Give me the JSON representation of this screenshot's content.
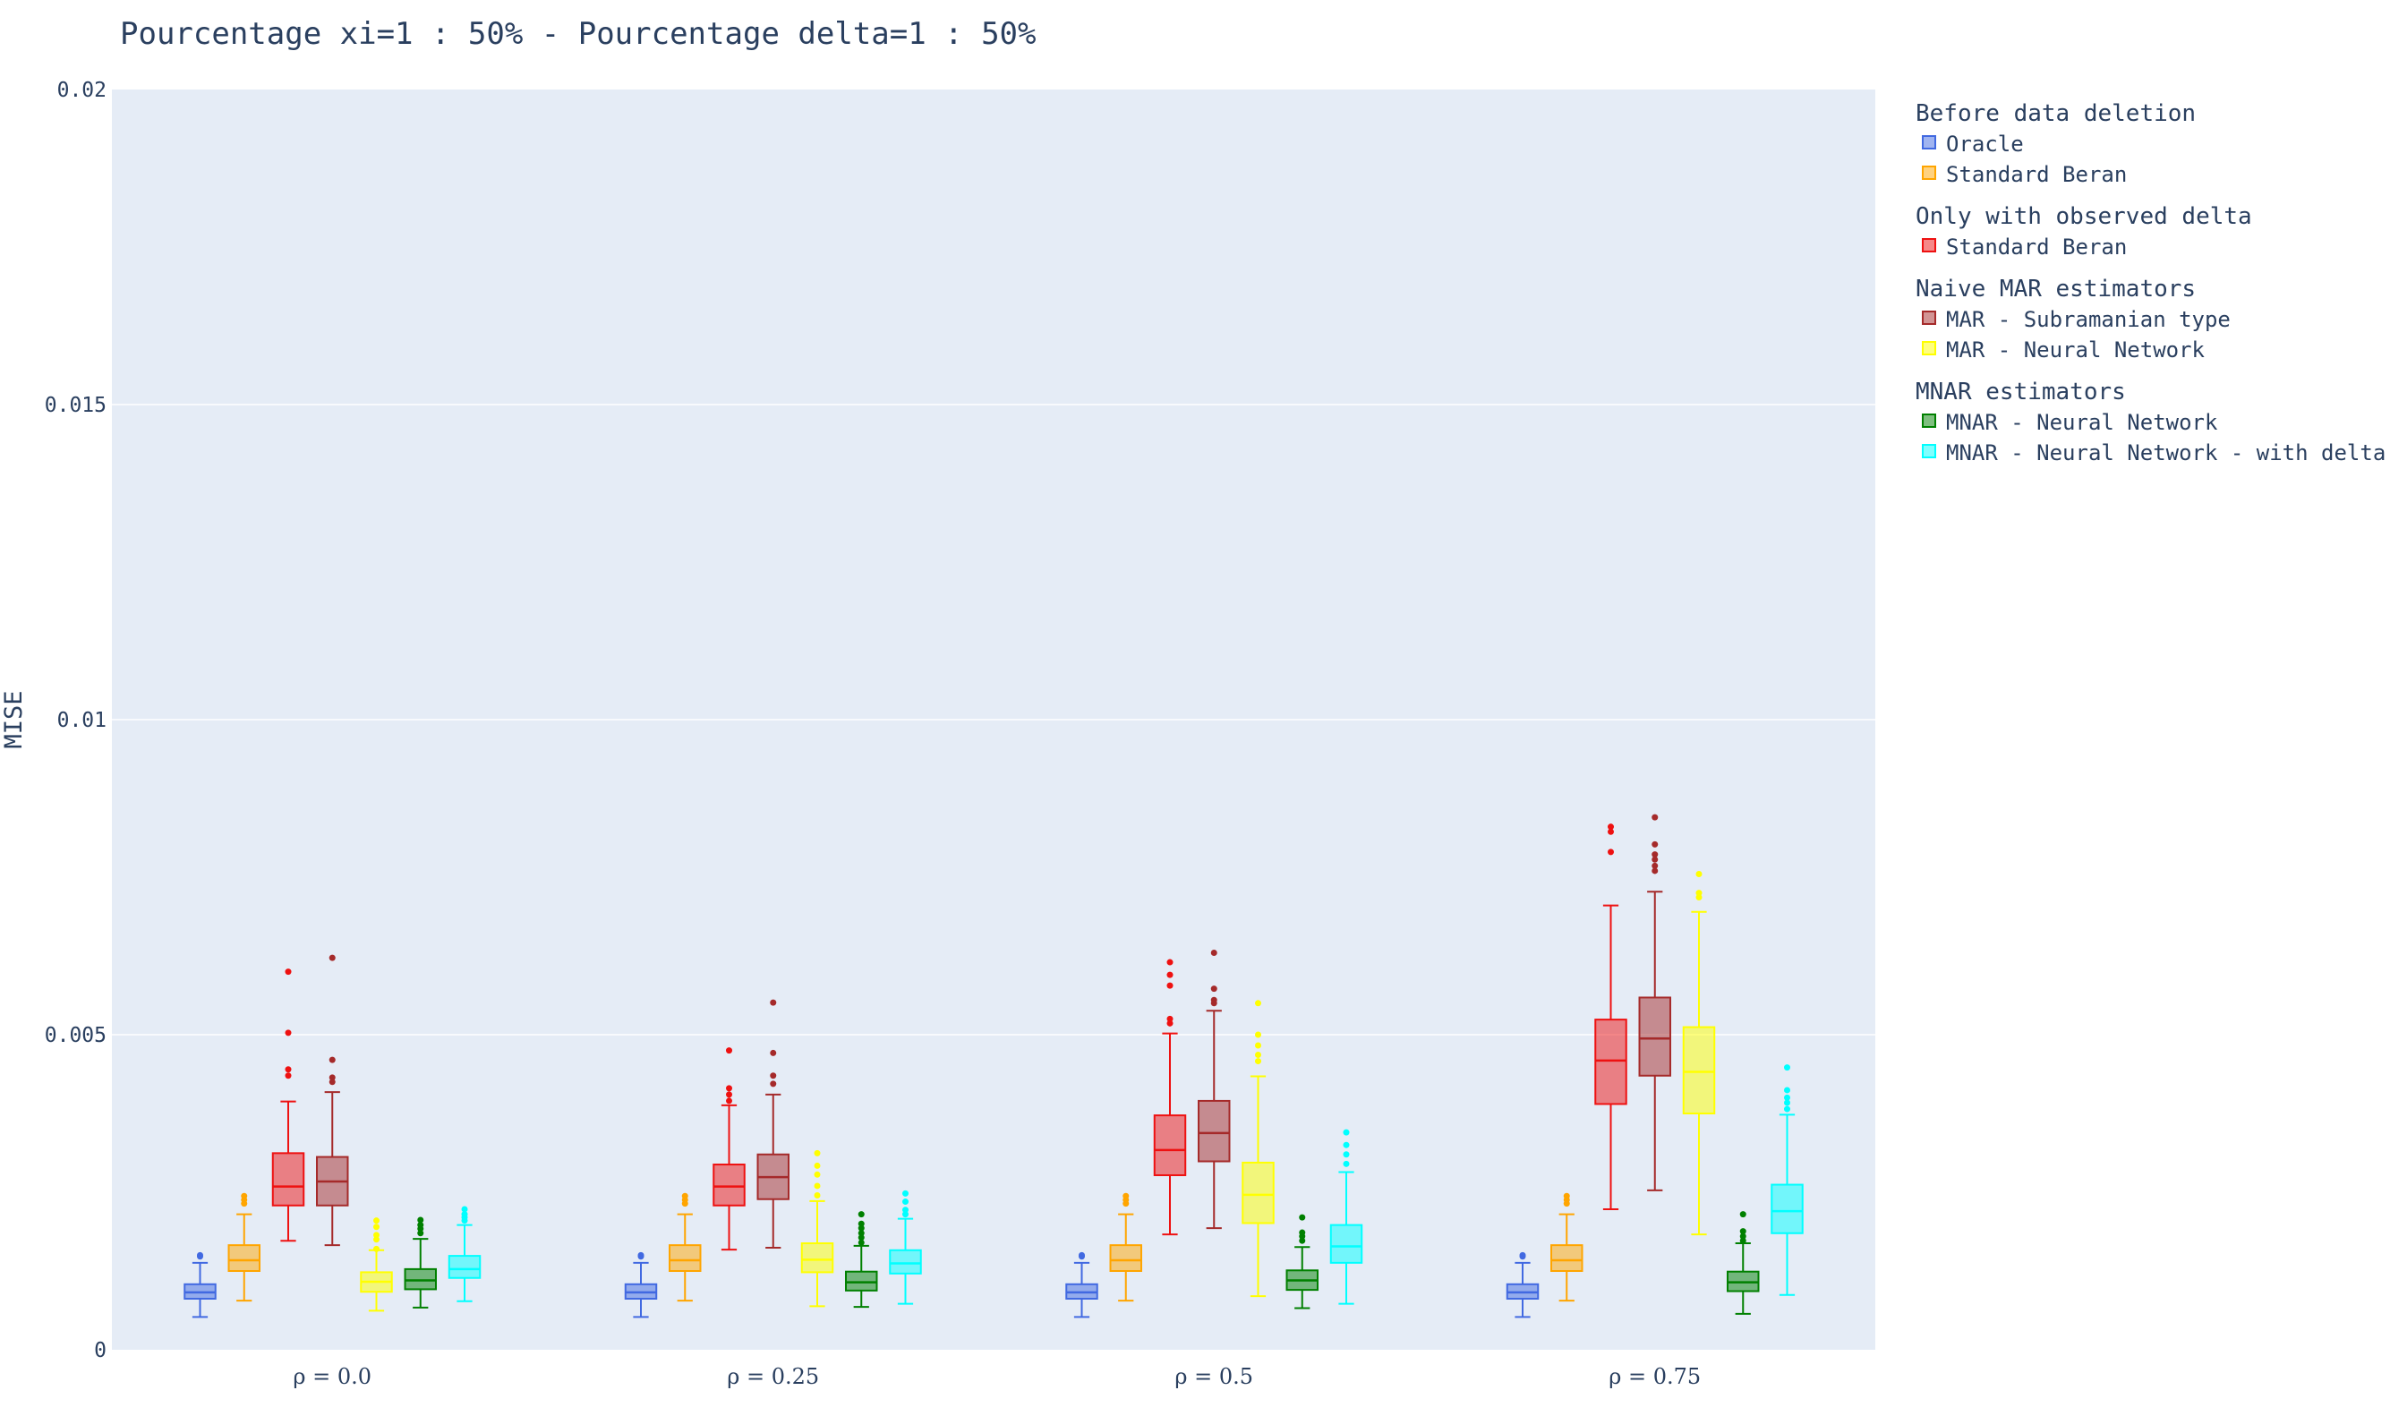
{
  "chart_data": {
    "type": "box",
    "title": "Pourcentage xi=1 : 50% - Pourcentage delta=1 : 50%",
    "ylabel": "MISE",
    "xlabel": "",
    "ylim": [
      0,
      0.02
    ],
    "yticks": [
      0,
      0.005,
      0.01,
      0.015,
      0.02
    ],
    "ytick_labels": [
      "0",
      "0.005",
      "0.01",
      "0.015",
      "0.02"
    ],
    "grid": true,
    "legend_position": "right",
    "categories": [
      "ρ = 0.0",
      "ρ = 0.25",
      "ρ = 0.5",
      "ρ = 0.75"
    ],
    "legend_groups": [
      {
        "title": "Before data deletion",
        "items": [
          "Oracle",
          "Standard Beran"
        ]
      },
      {
        "title": "Only with observed delta",
        "items": [
          "Standard Beran"
        ]
      },
      {
        "title": "Naive MAR estimators",
        "items": [
          "MAR - Subramanian type",
          "MAR - Neural Network"
        ]
      },
      {
        "title": "MNAR estimators",
        "items": [
          "MNAR - Neural Network",
          "MNAR - Neural Network - with delta"
        ]
      }
    ],
    "series": [
      {
        "name": "Oracle",
        "color": "#4169e1",
        "boxes": [
          {
            "min": 0.00052,
            "q1": 0.00081,
            "median": 0.00091,
            "q3": 0.00104,
            "max": 0.00138,
            "outliers": [
              0.00148,
              0.0015
            ]
          },
          {
            "min": 0.00052,
            "q1": 0.00081,
            "median": 0.00091,
            "q3": 0.00104,
            "max": 0.00138,
            "outliers": [
              0.00148,
              0.0015
            ]
          },
          {
            "min": 0.00052,
            "q1": 0.00081,
            "median": 0.00091,
            "q3": 0.00104,
            "max": 0.00138,
            "outliers": [
              0.00148,
              0.0015
            ]
          },
          {
            "min": 0.00052,
            "q1": 0.00081,
            "median": 0.00091,
            "q3": 0.00104,
            "max": 0.00138,
            "outliers": [
              0.00148,
              0.0015
            ]
          }
        ]
      },
      {
        "name": "Standard Beran",
        "color": "#ffa500",
        "boxes": [
          {
            "min": 0.00078,
            "q1": 0.00125,
            "median": 0.00142,
            "q3": 0.00166,
            "max": 0.00215,
            "outliers": [
              0.00232,
              0.00238,
              0.00244
            ]
          },
          {
            "min": 0.00078,
            "q1": 0.00125,
            "median": 0.00142,
            "q3": 0.00166,
            "max": 0.00215,
            "outliers": [
              0.00232,
              0.00238,
              0.00244
            ]
          },
          {
            "min": 0.00078,
            "q1": 0.00125,
            "median": 0.00142,
            "q3": 0.00166,
            "max": 0.00215,
            "outliers": [
              0.00232,
              0.00238,
              0.00244
            ]
          },
          {
            "min": 0.00078,
            "q1": 0.00125,
            "median": 0.00142,
            "q3": 0.00166,
            "max": 0.00215,
            "outliers": [
              0.00232,
              0.00238,
              0.00244
            ]
          }
        ]
      },
      {
        "name": "Standard Beran (observed delta)",
        "color": "#ee1111",
        "boxes": [
          {
            "min": 0.00173,
            "q1": 0.00229,
            "median": 0.00259,
            "q3": 0.00312,
            "max": 0.00394,
            "outliers": [
              0.00435,
              0.00445,
              0.00503,
              0.006
            ]
          },
          {
            "min": 0.00159,
            "q1": 0.00229,
            "median": 0.00259,
            "q3": 0.00294,
            "max": 0.00388,
            "outliers": [
              0.00395,
              0.00405,
              0.00415,
              0.00475
            ]
          },
          {
            "min": 0.00183,
            "q1": 0.00277,
            "median": 0.00317,
            "q3": 0.00372,
            "max": 0.00502,
            "outliers": [
              0.00518,
              0.00525,
              0.00578,
              0.00595,
              0.00615
            ]
          },
          {
            "min": 0.00223,
            "q1": 0.0039,
            "median": 0.00459,
            "q3": 0.00524,
            "max": 0.00705,
            "outliers": [
              0.0079,
              0.00822,
              0.0083
            ]
          }
        ]
      },
      {
        "name": "MAR - Subramanian type",
        "color": "#a52a2a",
        "boxes": [
          {
            "min": 0.00166,
            "q1": 0.00229,
            "median": 0.00267,
            "q3": 0.00306,
            "max": 0.00409,
            "outliers": [
              0.00425,
              0.00432,
              0.0046,
              0.00622
            ]
          },
          {
            "min": 0.00162,
            "q1": 0.00239,
            "median": 0.00274,
            "q3": 0.0031,
            "max": 0.00405,
            "outliers": [
              0.00422,
              0.00435,
              0.00471,
              0.00551
            ]
          },
          {
            "min": 0.00193,
            "q1": 0.00299,
            "median": 0.00344,
            "q3": 0.00395,
            "max": 0.00538,
            "outliers": [
              0.0055,
              0.00555,
              0.00573,
              0.0063
            ]
          },
          {
            "min": 0.00253,
            "q1": 0.00435,
            "median": 0.00494,
            "q3": 0.00559,
            "max": 0.00727,
            "outliers": [
              0.0076,
              0.00768,
              0.00778,
              0.00786,
              0.00802,
              0.00845
            ]
          }
        ]
      },
      {
        "name": "MAR - Neural Network",
        "color": "#ffff00",
        "boxes": [
          {
            "min": 0.00062,
            "q1": 0.00092,
            "median": 0.00108,
            "q3": 0.00123,
            "max": 0.00158,
            "outliers": [
              0.0016,
              0.00175,
              0.00182,
              0.00195,
              0.00205
            ]
          },
          {
            "min": 0.00069,
            "q1": 0.00123,
            "median": 0.00143,
            "q3": 0.00169,
            "max": 0.00236,
            "outliers": [
              0.00245,
              0.0026,
              0.00278,
              0.00292,
              0.00312
            ]
          },
          {
            "min": 0.00085,
            "q1": 0.00201,
            "median": 0.00246,
            "q3": 0.00297,
            "max": 0.00434,
            "outliers": [
              0.00458,
              0.00468,
              0.00483,
              0.005,
              0.0055
            ]
          },
          {
            "min": 0.00183,
            "q1": 0.00375,
            "median": 0.00441,
            "q3": 0.00512,
            "max": 0.00695,
            "outliers": [
              0.00718,
              0.00725,
              0.00755
            ]
          }
        ]
      },
      {
        "name": "MNAR - Neural Network",
        "color": "#008000",
        "boxes": [
          {
            "min": 0.00067,
            "q1": 0.00096,
            "median": 0.0011,
            "q3": 0.00128,
            "max": 0.00176,
            "outliers": [
              0.00185,
              0.00192,
              0.00198,
              0.00206
            ]
          },
          {
            "min": 0.00068,
            "q1": 0.00094,
            "median": 0.00107,
            "q3": 0.00124,
            "max": 0.00165,
            "outliers": [
              0.0017,
              0.00178,
              0.00185,
              0.00193,
              0.002,
              0.00215
            ]
          },
          {
            "min": 0.00066,
            "q1": 0.00095,
            "median": 0.0011,
            "q3": 0.00126,
            "max": 0.00163,
            "outliers": [
              0.00173,
              0.0018,
              0.00186,
              0.0021
            ]
          },
          {
            "min": 0.00057,
            "q1": 0.00093,
            "median": 0.00107,
            "q3": 0.00124,
            "max": 0.00169,
            "outliers": [
              0.00173,
              0.0018,
              0.00188,
              0.00215
            ]
          }
        ]
      },
      {
        "name": "MNAR - Neural Network - with delta",
        "color": "#00ffff",
        "boxes": [
          {
            "min": 0.00077,
            "q1": 0.00114,
            "median": 0.00128,
            "q3": 0.00149,
            "max": 0.00198,
            "outliers": [
              0.00205,
              0.0021,
              0.00215,
              0.00223
            ]
          },
          {
            "min": 0.00073,
            "q1": 0.00121,
            "median": 0.00137,
            "q3": 0.00158,
            "max": 0.00208,
            "outliers": [
              0.00215,
              0.00222,
              0.00235,
              0.00248
            ]
          },
          {
            "min": 0.00073,
            "q1": 0.00138,
            "median": 0.00164,
            "q3": 0.00198,
            "max": 0.00282,
            "outliers": [
              0.00295,
              0.0031,
              0.00325,
              0.00345
            ]
          },
          {
            "min": 0.00087,
            "q1": 0.00185,
            "median": 0.0022,
            "q3": 0.00262,
            "max": 0.00373,
            "outliers": [
              0.00382,
              0.00392,
              0.004,
              0.00412,
              0.00448
            ]
          }
        ]
      }
    ]
  }
}
